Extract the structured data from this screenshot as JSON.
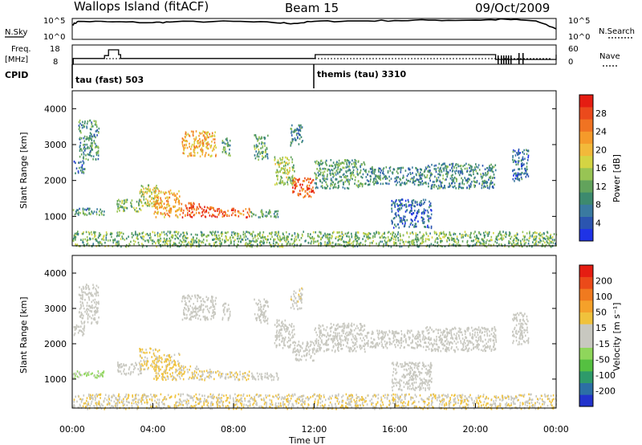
{
  "header": {
    "station": "Wallops Island (fitACF)",
    "beam": "Beam 15",
    "date": "09/Oct/2009"
  },
  "top_panels": {
    "nsky_label": "N.Sky",
    "nsky_ticks": [
      "10^5",
      "10^0"
    ],
    "nsearch_label": "N.Search",
    "freq_label_1": "Freq.",
    "freq_label_2": "[MHz]",
    "freq_ticks": [
      "18",
      "8"
    ],
    "nave_label": "Nave",
    "nave_ticks": [
      "60",
      "0"
    ],
    "cpid_label": "CPID",
    "cpid_segments": [
      {
        "label": "tau (fast) 503",
        "start_hour": 0
      },
      {
        "label": "themis (tau) 3310",
        "start_hour": 12
      }
    ]
  },
  "time_axis": {
    "label": "Time UT",
    "ticks": [
      "00:00",
      "04:00",
      "08:00",
      "12:00",
      "16:00",
      "20:00",
      "00:00"
    ]
  },
  "power_panel": {
    "ylabel": "Slant Range [km]",
    "yticks": [
      "1000",
      "2000",
      "3000",
      "4000"
    ],
    "colorbar_label": "Power [dB]",
    "colorbar_ticks": [
      "28",
      "24",
      "20",
      "16",
      "12",
      "8",
      "4"
    ],
    "colors": [
      "#1f33e6",
      "#2b55b0",
      "#3a7aa0",
      "#3d8a6e",
      "#62a35c",
      "#98c454",
      "#d4d443",
      "#f2b93a",
      "#f59a2a",
      "#f07322",
      "#eb4a1c",
      "#e51d12"
    ]
  },
  "velocity_panel": {
    "ylabel": "Slant Range [km]",
    "yticks": [
      "1000",
      "2000",
      "3000",
      "4000"
    ],
    "colorbar_label": "Velocity [m s⁻¹]",
    "colorbar_ticks": [
      "200",
      "100",
      "50",
      "15",
      "-15",
      "-50",
      "-100",
      "-200"
    ],
    "colors": [
      "#2233cc",
      "#2c6fa5",
      "#2e9a6a",
      "#55c041",
      "#8fd65b",
      "#c8c8c0",
      "#c8c8c0",
      "#f0c23c",
      "#f5a12a",
      "#f07a1f",
      "#eb4a19",
      "#e51d12"
    ]
  },
  "chart_data": [
    {
      "type": "line",
      "title": "Wallops Island (fitACF)",
      "subtitle": "Beam 15",
      "xlabel": "Time UT",
      "x_range_hours": [
        0,
        24
      ],
      "series": [
        {
          "name": "N.Sky",
          "x": [
            0,
            0.3,
            2,
            4,
            5,
            8,
            10,
            11,
            12,
            14,
            16,
            18,
            20,
            21.5,
            23,
            24
          ],
          "y_log10": [
            3.5,
            4.3,
            4.2,
            4.0,
            4.2,
            4.3,
            4.0,
            3.8,
            4.3,
            4.4,
            4.5,
            4.6,
            4.6,
            4.8,
            4.4,
            2.5
          ]
        }
      ]
    },
    {
      "type": "line",
      "xlabel": "Time UT",
      "ylim": [
        8,
        18
      ],
      "series": [
        {
          "name": "Freq. [MHz]",
          "x": [
            0,
            0.05,
            1.6,
            1.8,
            2.3,
            2.4,
            3.6,
            12,
            12.05,
            20.8,
            21,
            24
          ],
          "y": [
            8,
            11.0,
            12.5,
            15.5,
            13.0,
            11.0,
            11.0,
            11.0,
            13.0,
            13.0,
            10.5,
            13.0
          ]
        }
      ]
    },
    {
      "type": "heatmap",
      "title": "Power [dB]",
      "xlabel": "Time UT",
      "ylabel": "Slant Range [km]",
      "x_range_hours": [
        0,
        24
      ],
      "ylim": [
        180,
        4500
      ],
      "zlim": [
        0,
        30
      ],
      "echo_regions": [
        {
          "t0": 0.05,
          "t1": 0.6,
          "r0": 2200,
          "r1": 2600,
          "db": 6
        },
        {
          "t0": 0.3,
          "t1": 1.3,
          "r0": 2600,
          "r1": 3700,
          "db": 9
        },
        {
          "t0": 0.0,
          "t1": 1.6,
          "r0": 1050,
          "r1": 1250,
          "db": 9
        },
        {
          "t0": 2.2,
          "t1": 3.4,
          "r0": 1150,
          "r1": 1500,
          "db": 12
        },
        {
          "t0": 3.3,
          "t1": 4.3,
          "r0": 1300,
          "r1": 1900,
          "db": 15
        },
        {
          "t0": 4.0,
          "t1": 5.3,
          "r0": 1000,
          "r1": 1750,
          "db": 20
        },
        {
          "t0": 5.3,
          "t1": 6.3,
          "r0": 1000,
          "r1": 1400,
          "db": 25
        },
        {
          "t0": 6.3,
          "t1": 7.2,
          "r0": 1000,
          "r1": 1300,
          "db": 26
        },
        {
          "t0": 7.2,
          "t1": 8.0,
          "r0": 1000,
          "r1": 1250,
          "db": 26
        },
        {
          "t0": 8.0,
          "t1": 8.8,
          "r0": 1000,
          "r1": 1250,
          "db": 24
        },
        {
          "t0": 8.8,
          "t1": 10.2,
          "r0": 1000,
          "r1": 1200,
          "db": 10
        },
        {
          "t0": 5.4,
          "t1": 7.1,
          "r0": 2700,
          "r1": 3400,
          "db": 20
        },
        {
          "t0": 7.4,
          "t1": 7.8,
          "r0": 2700,
          "r1": 3200,
          "db": 10
        },
        {
          "t0": 9.0,
          "t1": 9.7,
          "r0": 2600,
          "r1": 3300,
          "db": 11
        },
        {
          "t0": 10.0,
          "t1": 11.0,
          "r0": 1900,
          "r1": 2700,
          "db": 14
        },
        {
          "t0": 10.9,
          "t1": 12.0,
          "r0": 1550,
          "r1": 2100,
          "db": 25
        },
        {
          "t0": 10.8,
          "t1": 11.4,
          "r0": 3000,
          "r1": 3600,
          "db": 8
        },
        {
          "t0": 12.0,
          "t1": 14.5,
          "r0": 1800,
          "r1": 2600,
          "db": 10
        },
        {
          "t0": 14.5,
          "t1": 17.5,
          "r0": 1900,
          "r1": 2400,
          "db": 8
        },
        {
          "t0": 17.5,
          "t1": 21.0,
          "r0": 1800,
          "r1": 2500,
          "db": 8
        },
        {
          "t0": 21.8,
          "t1": 22.6,
          "r0": 2000,
          "r1": 2900,
          "db": 6
        },
        {
          "t0": 15.8,
          "t1": 17.8,
          "r0": 700,
          "r1": 1500,
          "db": 5
        },
        {
          "t0": 0.0,
          "t1": 24.0,
          "r0": 180,
          "r1": 600,
          "db": 12
        }
      ]
    },
    {
      "type": "heatmap",
      "title": "Velocity [m s⁻¹]",
      "xlabel": "Time UT",
      "ylabel": "Slant Range [km]",
      "x_range_hours": [
        0,
        24
      ],
      "ylim": [
        180,
        4500
      ],
      "zlim": [
        -200,
        200
      ],
      "echo_regions": [
        {
          "t0": 0.05,
          "t1": 0.6,
          "r0": 2200,
          "r1": 2600,
          "v": 0
        },
        {
          "t0": 0.3,
          "t1": 1.3,
          "r0": 2600,
          "r1": 3700,
          "v": 0
        },
        {
          "t0": 0.0,
          "t1": 1.6,
          "r0": 1050,
          "r1": 1250,
          "v": 40
        },
        {
          "t0": 2.2,
          "t1": 3.4,
          "r0": 1150,
          "r1": 1500,
          "v": 0
        },
        {
          "t0": 3.3,
          "t1": 4.3,
          "r0": 1300,
          "r1": 1900,
          "v": -40
        },
        {
          "t0": 4.0,
          "t1": 5.3,
          "r0": 1000,
          "r1": 1750,
          "v": -40
        },
        {
          "t0": 5.3,
          "t1": 6.3,
          "r0": 1000,
          "r1": 1400,
          "v": -35
        },
        {
          "t0": 6.3,
          "t1": 7.2,
          "r0": 1000,
          "r1": 1300,
          "v": -30
        },
        {
          "t0": 7.2,
          "t1": 8.0,
          "r0": 1000,
          "r1": 1250,
          "v": -25
        },
        {
          "t0": 8.0,
          "t1": 8.8,
          "r0": 1000,
          "r1": 1250,
          "v": -30
        },
        {
          "t0": 8.8,
          "t1": 10.2,
          "r0": 1000,
          "r1": 1200,
          "v": 0
        },
        {
          "t0": 5.4,
          "t1": 7.1,
          "r0": 2700,
          "r1": 3400,
          "v": 0
        },
        {
          "t0": 7.4,
          "t1": 7.8,
          "r0": 2700,
          "r1": 3200,
          "v": 0
        },
        {
          "t0": 9.0,
          "t1": 9.7,
          "r0": 2600,
          "r1": 3300,
          "v": 0
        },
        {
          "t0": 10.0,
          "t1": 11.0,
          "r0": 1900,
          "r1": 2700,
          "v": 0
        },
        {
          "t0": 10.9,
          "t1": 12.0,
          "r0": 1550,
          "r1": 2100,
          "v": 0
        },
        {
          "t0": 10.8,
          "t1": 11.4,
          "r0": 3000,
          "r1": 3600,
          "v": -20
        },
        {
          "t0": 12.0,
          "t1": 14.5,
          "r0": 1800,
          "r1": 2600,
          "v": 0
        },
        {
          "t0": 14.5,
          "t1": 17.5,
          "r0": 1900,
          "r1": 2400,
          "v": 0
        },
        {
          "t0": 17.5,
          "t1": 21.0,
          "r0": 1800,
          "r1": 2500,
          "v": 0
        },
        {
          "t0": 21.8,
          "t1": 22.6,
          "r0": 2000,
          "r1": 2900,
          "v": 0
        },
        {
          "t0": 15.8,
          "t1": 17.8,
          "r0": 700,
          "r1": 1500,
          "v": 0
        },
        {
          "t0": 0.0,
          "t1": 24.0,
          "r0": 180,
          "r1": 600,
          "v": -30
        }
      ]
    }
  ]
}
